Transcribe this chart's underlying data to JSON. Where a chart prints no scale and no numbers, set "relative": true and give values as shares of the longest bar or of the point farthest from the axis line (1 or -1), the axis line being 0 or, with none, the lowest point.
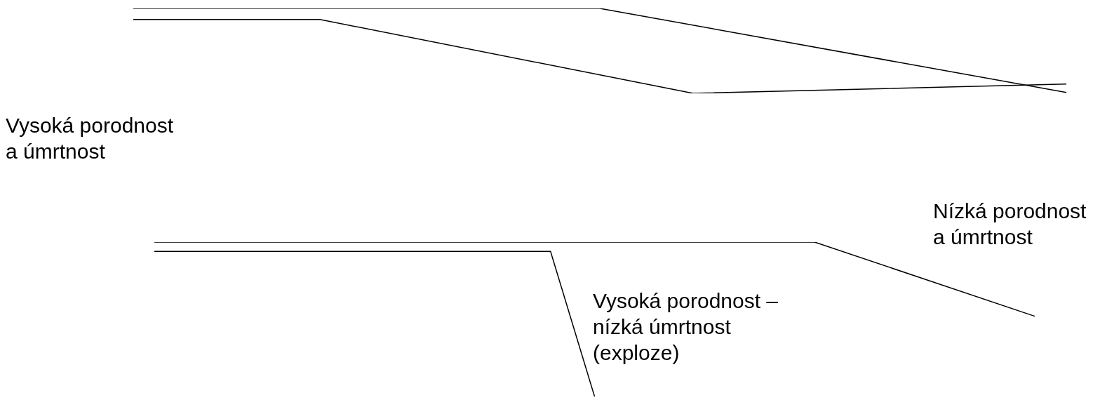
{
  "chart_data": [
    {
      "type": "line",
      "relative": true,
      "marker": "none",
      "categories": [
        null,
        null,
        null,
        null,
        null,
        null,
        null,
        null,
        null,
        null,
        null,
        null,
        null,
        null,
        null,
        null,
        null,
        null,
        null,
        null,
        null
      ],
      "series": [
        {
          "color": "#000000",
          "values": [
            1,
            null,
            null,
            null,
            null,
            null,
            null,
            null,
            null,
            null,
            1,
            null,
            null,
            null,
            null,
            null,
            null,
            null,
            null,
            null,
            0.01
          ]
        },
        {
          "color": "#000000",
          "values": [
            0.87,
            null,
            null,
            null,
            0.87,
            null,
            null,
            null,
            null,
            null,
            null,
            null,
            0,
            null,
            null,
            null,
            null,
            null,
            null,
            null,
            0.11
          ]
        }
      ],
      "annotations": [
        "Vysoká porodnost a úmrtnost",
        "Nízká porodnost a úmrtnost"
      ]
    },
    {
      "type": "line",
      "relative": true,
      "marker": "none",
      "categories": [
        null,
        null,
        null,
        null,
        null,
        null,
        null,
        null,
        null,
        null,
        null,
        null,
        null,
        null,
        null,
        null,
        null,
        null,
        null,
        null,
        null
      ],
      "series": [
        {
          "color": "#000000",
          "values": [
            1,
            null,
            null,
            null,
            null,
            null,
            null,
            null,
            null,
            null,
            null,
            null,
            null,
            null,
            null,
            1,
            null,
            null,
            null,
            null,
            0.52
          ]
        },
        {
          "color": "#000000",
          "values": [
            0.94,
            null,
            null,
            null,
            null,
            null,
            null,
            null,
            null,
            0.94,
            0,
            null,
            null,
            null,
            null,
            null,
            null,
            null,
            null,
            null,
            null
          ]
        }
      ],
      "annotations": [
        "Vysoká porodnost – nízká úmrtnost (exploze)"
      ]
    }
  ]
}
